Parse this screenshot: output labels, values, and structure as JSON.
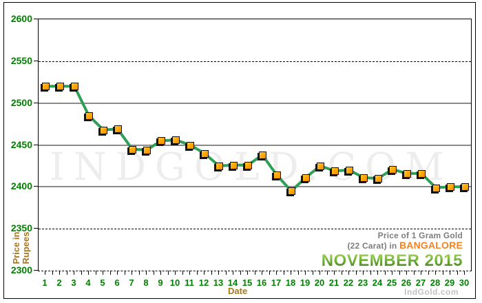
{
  "watermark": "INDGOLD.COM",
  "brand": "IndGold.com",
  "annotation": {
    "line1": "Price of 1 Gram Gold",
    "line2_prefix": "(22 Carat) in ",
    "city": "BANGALORE",
    "period": "NOVEMBER 2015"
  },
  "axis_titles": {
    "y_line1": "Price in",
    "y_line2": "Rupees",
    "x": "Date"
  },
  "colors": {
    "tick_label_green": "#008000",
    "axis_title_brown": "#a9761c",
    "line_green": "#2f9f58",
    "marker_orange": "#ffa500",
    "annotation_gray": "#7d7d7d",
    "city_orange": "#f5821f",
    "month_green": "#5a9e2d",
    "solid_grid_gray": "#8a8a8a",
    "brand_gray": "#c2c2c2"
  },
  "chart_data": {
    "type": "line",
    "title": "Price of 1 Gram Gold (22 Carat) in BANGALORE - NOVEMBER 2015",
    "xlabel": "Date",
    "ylabel": "Price in Rupees",
    "x": [
      1,
      2,
      3,
      4,
      5,
      6,
      7,
      8,
      9,
      10,
      11,
      12,
      13,
      14,
      15,
      16,
      17,
      18,
      19,
      20,
      21,
      22,
      23,
      24,
      25,
      26,
      27,
      28,
      29,
      30
    ],
    "values": [
      2520,
      2520,
      2520,
      2485,
      2468,
      2469,
      2445,
      2444,
      2455,
      2456,
      2450,
      2440,
      2425,
      2426,
      2426,
      2438,
      2414,
      2395,
      2411,
      2425,
      2419,
      2420,
      2411,
      2410,
      2421,
      2416,
      2416,
      2399,
      2400,
      2400
    ],
    "ylim": [
      2300,
      2600
    ],
    "yticks": [
      2600,
      2550,
      2500,
      2450,
      2400,
      2350,
      2300
    ],
    "solid_gridlines": [
      2500,
      2450,
      2400
    ],
    "dashed_gridlines": [
      2550,
      2350
    ],
    "grid": "horizontal",
    "legend_position": "none",
    "line_color": "#2f9f58",
    "marker_color": "#ffa500"
  }
}
